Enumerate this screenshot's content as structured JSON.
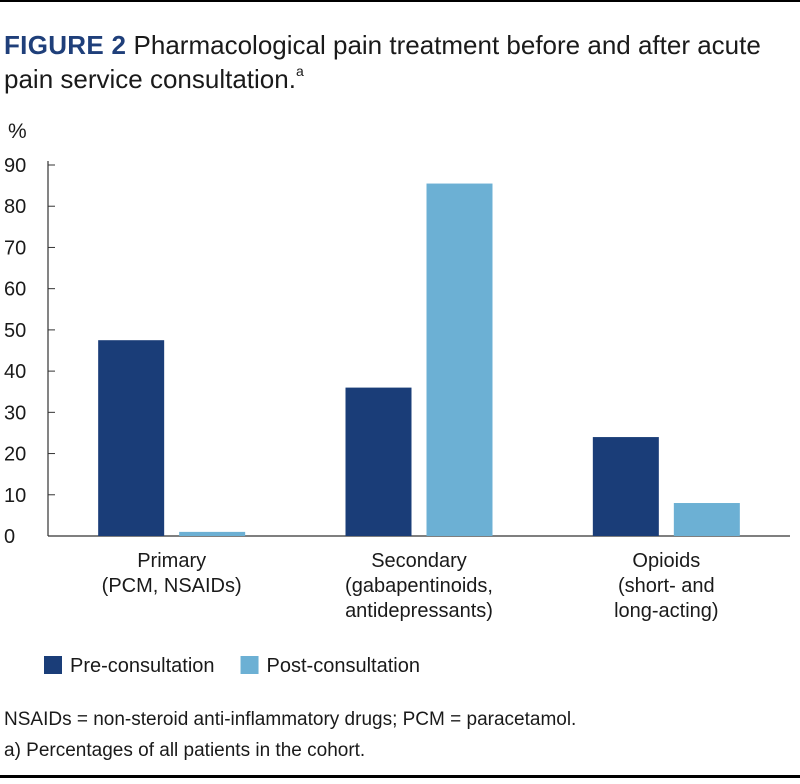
{
  "figure": {
    "label": "FIGURE 2",
    "title": "Pharmacological pain treatment before and after acute pain service consultation.",
    "title_superscript": "a"
  },
  "chart_data": {
    "type": "bar",
    "ylabel": "%",
    "ylim": [
      0,
      90
    ],
    "yticks": [
      0,
      10,
      20,
      30,
      40,
      50,
      60,
      70,
      80,
      90
    ],
    "grid": false,
    "legend_placement": "bottom-left",
    "categories": [
      [
        "Primary",
        "(PCM, NSAIDs)"
      ],
      [
        "Secondary",
        "(gabapentinoids,",
        "antidepressants)"
      ],
      [
        "Opioids",
        "(short- and",
        "long-acting)"
      ]
    ],
    "series": [
      {
        "name": "Pre-consultation",
        "color": "#1a3d78",
        "values": [
          47.5,
          36,
          24
        ]
      },
      {
        "name": "Post-consultation",
        "color": "#6cb0d4",
        "values": [
          1,
          85.5,
          8
        ]
      }
    ]
  },
  "footnotes": [
    "NSAIDs = non-steroid anti-inflammatory drugs; PCM = paracetamol.",
    "a) Percentages of all patients in the cohort."
  ]
}
